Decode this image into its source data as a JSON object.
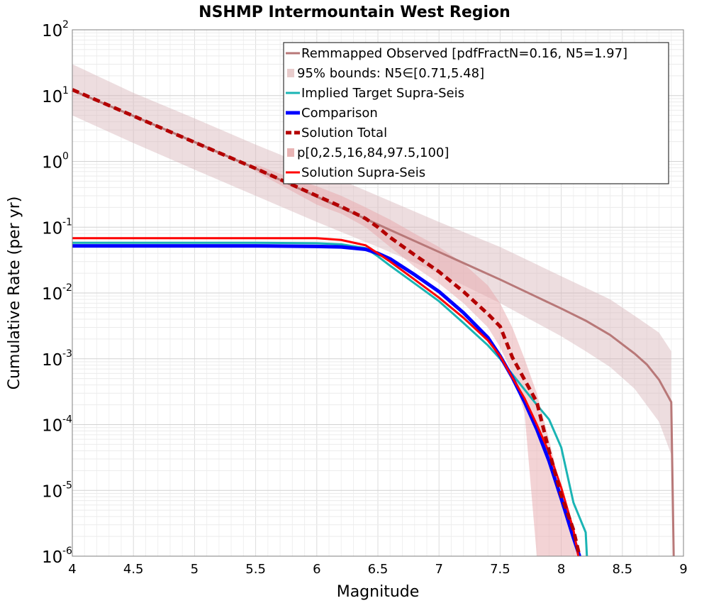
{
  "chart_data": {
    "type": "line",
    "title": "NSHMP Intermountain West Region",
    "xlabel": "Magnitude",
    "ylabel": "Cumulative Rate (per yr)",
    "xlim": [
      4,
      9
    ],
    "ylim": [
      1e-06,
      100
    ],
    "yscale": "log",
    "xticks": [
      4,
      4.5,
      5,
      5.5,
      6,
      6.5,
      7,
      7.5,
      8,
      8.5,
      9
    ],
    "xtick_labels": [
      "4",
      "4.5",
      "5",
      "5.5",
      "6",
      "6.5",
      "7",
      "7.5",
      "8",
      "8.5",
      "9"
    ],
    "ytick_bases": [
      "10",
      "10",
      "10",
      "10",
      "10",
      "10",
      "10",
      "10",
      "10"
    ],
    "ytick_exponents": [
      "-6",
      "-5",
      "-4",
      "-3",
      "-2",
      "-1",
      "0",
      "1",
      "2"
    ],
    "grid": true,
    "legend_position": "top-right",
    "legend": [
      {
        "label": "Remmapped Observed [pdfFractN=0.16, N5=1.97]",
        "color": "#b87878",
        "kind": "line"
      },
      {
        "label": "95% bounds: N5∈[0.71,5.48]",
        "color": "#e8cccc",
        "kind": "band"
      },
      {
        "label": "Implied Target Supra-Seis",
        "color": "#1ab4b4",
        "kind": "line"
      },
      {
        "label": "Comparison",
        "color": "#0000ff",
        "kind": "thick-line"
      },
      {
        "label": "Solution Total",
        "color": "#b40000",
        "kind": "dashed-line"
      },
      {
        "label": "p[0,2.5,16,84,97.5,100]",
        "color": "#e8b4b4",
        "kind": "band"
      },
      {
        "label": "Solution Supra-Seis",
        "color": "#ff0000",
        "kind": "line"
      }
    ],
    "bands": [
      {
        "name": "95% bounds: N5∈[0.71,5.48]",
        "color": "#d7b4b8",
        "opacity": 0.45,
        "x": [
          4.0,
          4.5,
          5.0,
          5.5,
          6.0,
          6.5,
          7.0,
          7.5,
          8.0,
          8.2,
          8.4,
          8.6,
          8.8,
          8.9
        ],
        "upper": [
          30,
          11,
          4.5,
          1.8,
          0.75,
          0.3,
          0.12,
          0.05,
          0.018,
          0.012,
          0.008,
          0.0045,
          0.0025,
          0.0013
        ],
        "lower": [
          5,
          1.9,
          0.75,
          0.3,
          0.12,
          0.05,
          0.02,
          0.007,
          0.0022,
          0.0013,
          0.00075,
          0.00035,
          0.00011,
          3.5e-05
        ]
      },
      {
        "name": "p[0,2.5,16,84,97.5,100]",
        "color": "#e8a8ac",
        "opacity": 0.5,
        "x": [
          5.5,
          5.8,
          6.0,
          6.2,
          6.4,
          6.6,
          6.8,
          7.0,
          7.2,
          7.4,
          7.5,
          7.6,
          7.7,
          7.8,
          7.9,
          8.0,
          8.1,
          8.15
        ],
        "upper": [
          0.9,
          0.55,
          0.42,
          0.3,
          0.2,
          0.13,
          0.08,
          0.05,
          0.028,
          0.013,
          0.007,
          0.003,
          0.001,
          0.0003,
          6e-05,
          1e-05,
          2e-06,
          1e-06
        ],
        "lower": [
          0.7,
          0.35,
          0.22,
          0.16,
          0.1,
          0.05,
          0.025,
          0.014,
          0.007,
          0.003,
          0.0015,
          0.0006,
          0.00015,
          1e-06,
          1e-06,
          1e-06,
          1e-06,
          1e-06
        ]
      }
    ],
    "series": [
      {
        "name": "Remmapped Observed [pdfFractN=0.16, N5=1.97]",
        "color": "#b87878",
        "width": 3,
        "dash": "",
        "x": [
          4.0,
          4.5,
          5.0,
          5.5,
          6.0,
          6.5,
          7.0,
          7.5,
          8.0,
          8.2,
          8.4,
          8.6,
          8.7,
          8.8,
          8.9,
          8.92
        ],
        "y": [
          12,
          4.9,
          1.97,
          0.78,
          0.29,
          0.11,
          0.042,
          0.016,
          0.0058,
          0.0038,
          0.0023,
          0.0012,
          0.00082,
          0.00048,
          0.00022,
          1e-06
        ]
      },
      {
        "name": "Implied Target Supra-Seis",
        "color": "#1ab4b4",
        "width": 3,
        "dash": "",
        "x": [
          4.0,
          4.5,
          5.0,
          5.5,
          6.0,
          6.2,
          6.4,
          6.5,
          6.6,
          6.8,
          7.0,
          7.2,
          7.4,
          7.5,
          7.6,
          7.7,
          7.8,
          7.9,
          8.0,
          8.1,
          8.2,
          8.21
        ],
        "y": [
          0.058,
          0.058,
          0.058,
          0.058,
          0.057,
          0.055,
          0.048,
          0.036,
          0.026,
          0.014,
          0.0075,
          0.0035,
          0.0016,
          0.001,
          0.00058,
          0.00034,
          0.0002,
          0.00012,
          4.5e-05,
          6.5e-06,
          2.3e-06,
          1e-06
        ]
      },
      {
        "name": "Comparison",
        "color": "#0000ff",
        "width": 5,
        "dash": "",
        "x": [
          4.0,
          4.5,
          5.0,
          5.5,
          6.0,
          6.2,
          6.4,
          6.5,
          6.6,
          6.8,
          7.0,
          7.2,
          7.4,
          7.5,
          7.6,
          7.7,
          7.8,
          7.9,
          8.0,
          8.1,
          8.15
        ],
        "y": [
          0.052,
          0.052,
          0.052,
          0.052,
          0.051,
          0.05,
          0.046,
          0.04,
          0.033,
          0.019,
          0.0105,
          0.005,
          0.0021,
          0.0011,
          0.00052,
          0.00022,
          8.5e-05,
          2.8e-05,
          7.5e-06,
          1.9e-06,
          1e-06
        ]
      },
      {
        "name": "Solution Supra-Seis",
        "color": "#ff0000",
        "width": 3,
        "dash": "",
        "x": [
          4.0,
          4.5,
          5.0,
          5.5,
          6.0,
          6.2,
          6.4,
          6.5,
          6.6,
          6.8,
          7.0,
          7.2,
          7.4,
          7.5,
          7.6,
          7.7,
          7.8,
          7.9,
          8.0,
          8.1,
          8.14
        ],
        "y": [
          0.068,
          0.068,
          0.068,
          0.068,
          0.068,
          0.064,
          0.053,
          0.04,
          0.03,
          0.016,
          0.0085,
          0.0042,
          0.0019,
          0.0011,
          0.00052,
          0.00025,
          0.0001,
          3.8e-05,
          1.1e-05,
          2.5e-06,
          1e-06
        ]
      },
      {
        "name": "Solution Total",
        "color": "#b40000",
        "width": 5,
        "dash": "10,6",
        "x": [
          4.0,
          4.5,
          5.0,
          5.5,
          6.0,
          6.2,
          6.4,
          6.5,
          6.6,
          6.8,
          7.0,
          7.2,
          7.4,
          7.5,
          7.6,
          7.7,
          7.8,
          7.9,
          8.0,
          8.1,
          8.15
        ],
        "y": [
          12.3,
          4.9,
          1.95,
          0.78,
          0.3,
          0.205,
          0.135,
          0.1,
          0.07,
          0.038,
          0.021,
          0.0105,
          0.0048,
          0.0031,
          0.00105,
          0.00048,
          0.00022,
          4e-05,
          8.5e-06,
          2.5e-06,
          1e-06
        ]
      }
    ]
  }
}
